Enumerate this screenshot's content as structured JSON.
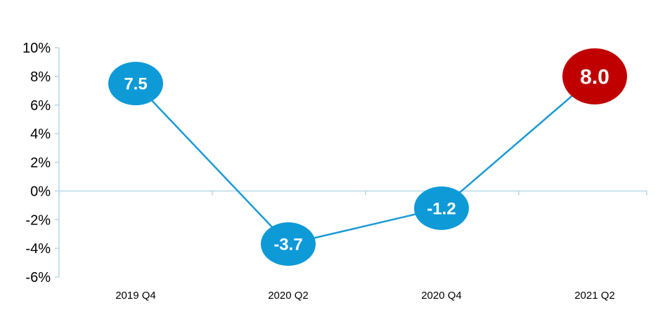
{
  "chart_data": {
    "type": "line",
    "title": "",
    "xlabel": "",
    "ylabel": "",
    "categories": [
      "2019 Q4",
      "2020 Q2",
      "2020 Q4",
      "2021 Q2"
    ],
    "series": [
      {
        "values": [
          7.5,
          -3.7,
          -1.2,
          8.0
        ],
        "data_labels": [
          "7.5",
          "-3.7",
          "-1.2",
          "8.0"
        ]
      }
    ],
    "ylim": [
      -6,
      10
    ],
    "yticks": [
      10,
      8,
      6,
      4,
      2,
      0,
      -2,
      -4,
      -6
    ],
    "ytick_labels": [
      "10%",
      "8%",
      "6%",
      "4%",
      "2%",
      "0%",
      "-2%",
      "-4%",
      "-6%"
    ],
    "grid": false,
    "legend": "none",
    "colors": {
      "line": "#1a9ad6",
      "marker": "#0e9ad7",
      "highlight_marker": "#c00000",
      "axis": "#b6d7e8",
      "label_text": "#ffffff"
    },
    "highlight_index": 3
  }
}
